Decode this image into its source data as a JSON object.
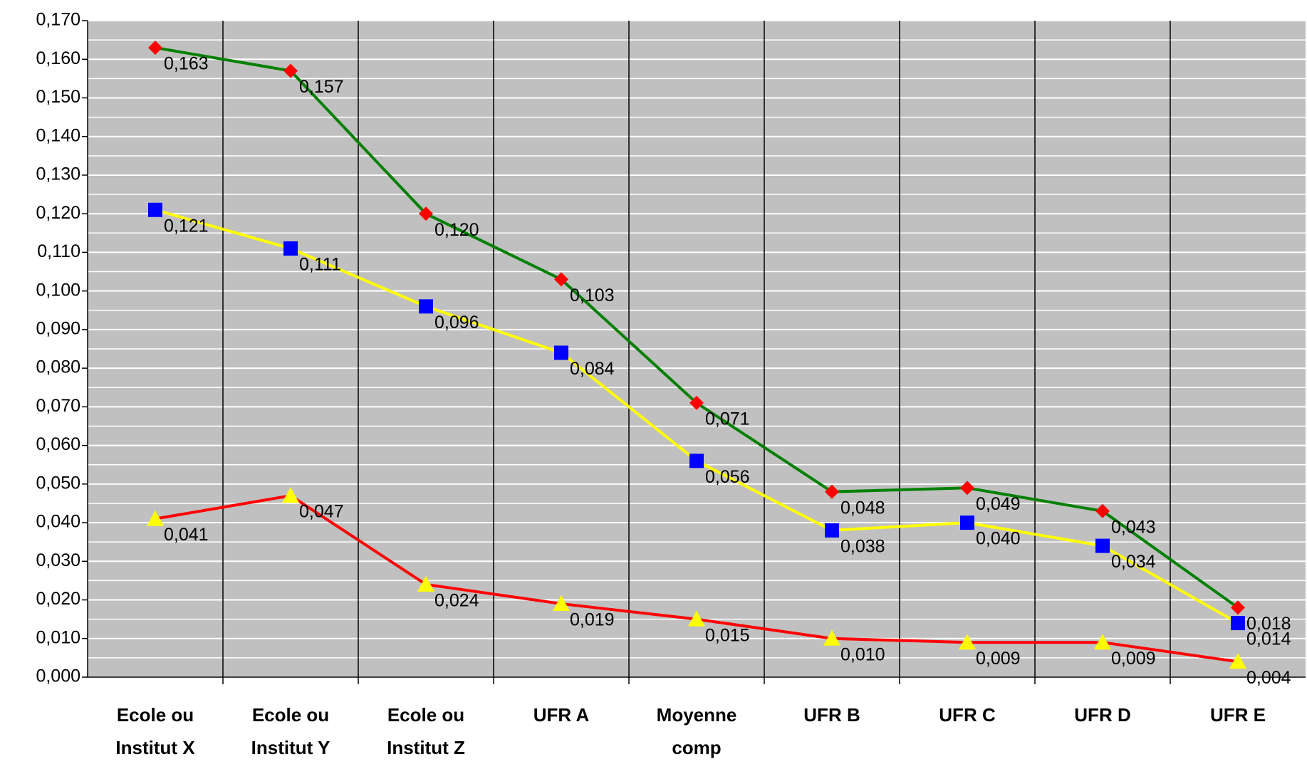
{
  "chart_data": {
    "type": "line",
    "categories": [
      "Ecole ou\nInstitut X",
      "Ecole ou\nInstitut Y",
      "Ecole ou\nInstitut Z",
      "UFR A",
      "Moyenne\ncomp",
      "UFR B",
      "UFR C",
      "UFR D",
      "UFR E"
    ],
    "series": [
      {
        "color": "#008000",
        "marker": "diamond",
        "marker_color": "#ff0000",
        "values": [
          0.163,
          0.157,
          0.12,
          0.103,
          0.071,
          0.048,
          0.049,
          0.043,
          0.018
        ],
        "value_labels": [
          "0,163",
          "0,157",
          "0,120",
          "0,103",
          "0,071",
          "0,048",
          "0,049",
          "0,043",
          "0,018"
        ]
      },
      {
        "color": "#ffff00",
        "marker": "square",
        "marker_color": "#0000ff",
        "values": [
          0.121,
          0.111,
          0.096,
          0.084,
          0.056,
          0.038,
          0.04,
          0.034,
          0.014
        ],
        "value_labels": [
          "0,121",
          "0,111",
          "0,096",
          "0,084",
          "0,056",
          "0,038",
          "0,040",
          "0,034",
          "0,014"
        ]
      },
      {
        "color": "#ff0000",
        "marker": "triangle",
        "marker_color": "#ffff00",
        "values": [
          0.041,
          0.047,
          0.024,
          0.019,
          0.015,
          0.01,
          0.009,
          0.009,
          0.004
        ],
        "value_labels": [
          "0,041",
          "0,047",
          "0,024",
          "0,019",
          "0,015",
          "0,010",
          "0,009",
          "0,009",
          "0,004"
        ]
      }
    ],
    "ylim": [
      0,
      0.17
    ],
    "yticks": [
      {
        "value": 0,
        "label": "0,000"
      },
      {
        "value": 0.01,
        "label": "0,010"
      },
      {
        "value": 0.02,
        "label": "0,020"
      },
      {
        "value": 0.03,
        "label": "0,030"
      },
      {
        "value": 0.04,
        "label": "0,040"
      },
      {
        "value": 0.05,
        "label": "0,050"
      },
      {
        "value": 0.06,
        "label": "0,060"
      },
      {
        "value": 0.07,
        "label": "0,070"
      },
      {
        "value": 0.08,
        "label": "0,080"
      },
      {
        "value": 0.09,
        "label": "0,090"
      },
      {
        "value": 0.1,
        "label": "0,100"
      },
      {
        "value": 0.11,
        "label": "0,110"
      },
      {
        "value": 0.12,
        "label": "0,120"
      },
      {
        "value": 0.13,
        "label": "0,130"
      },
      {
        "value": 0.14,
        "label": "0,140"
      },
      {
        "value": 0.15,
        "label": "0,150"
      },
      {
        "value": 0.16,
        "label": "0,160"
      },
      {
        "value": 0.17,
        "label": "0,170"
      }
    ],
    "grid": true,
    "minor_grid": true,
    "background": "#c0c0c0"
  }
}
